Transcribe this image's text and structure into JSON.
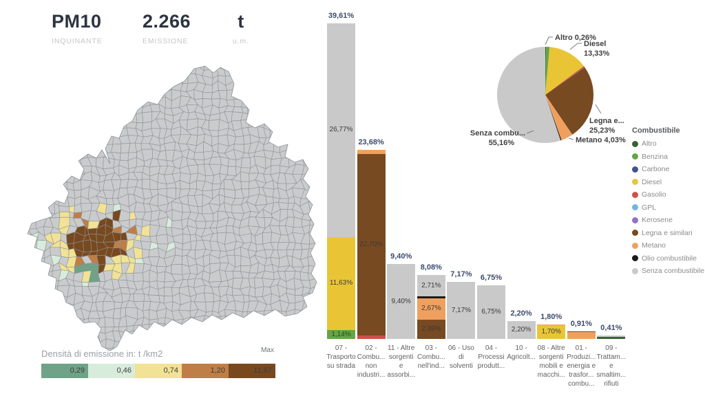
{
  "header": {
    "kpis": [
      {
        "value": "PM10",
        "caption": "INQUINANTE"
      },
      {
        "value": "2.266",
        "caption": "EMISSIONE"
      },
      {
        "value": "t",
        "caption": "u.m."
      }
    ]
  },
  "palette": {
    "fuels": {
      "Altro": "#3a6136",
      "Benzina": "#62a744",
      "Carbone": "#40548c",
      "Diesel": "#e9c536",
      "Gasolio": "#cf5049",
      "GPL": "#70b5e3",
      "Kerosene": "#9271c7",
      "Legna e similari": "#784a21",
      "Metano": "#efa05e",
      "Olio combustibile": "#1a1a1a",
      "Senza combustibile": "#c9c9c9"
    },
    "total_label": "#3b4a6b",
    "map_base": "#c9cbcc",
    "map_stroke": "#8e9396"
  },
  "map": {
    "density_legend": {
      "title": "Densità di emissione in: t /km2",
      "max_label": "Max",
      "stops": [
        {
          "label": "0,29",
          "color": "#6fa287"
        },
        {
          "label": "0,46",
          "color": "#d8ecdc"
        },
        {
          "label": "0,74",
          "color": "#f1e295"
        },
        {
          "label": "1,20",
          "color": "#bf7e45"
        },
        {
          "label": "11,67",
          "color": "#78491f"
        }
      ]
    }
  },
  "chart_data": [
    {
      "type": "bar",
      "stacked": true,
      "unit": "%",
      "title": "",
      "xlabel": "",
      "ylabel": "",
      "ylim": [
        0,
        42
      ],
      "grid": false,
      "categories": [
        "07 - Trasporto su strada",
        "02 - Combu... non industri...",
        "11 - Altre sorgenti e assorbi...",
        "03 - Combu... nell'ind...",
        "06 - Uso di solventi",
        "04 - Processi produtt...",
        "10 - Agricolt...",
        "08 - Altre sorgenti mobili e macchi...",
        "01 - Produzi... energia e trasfor... combu...",
        "09 - Trattam... e smaltim... rifiuti"
      ],
      "category_label_lines": [
        [
          "07 -",
          "Trasporto",
          "su strada"
        ],
        [
          "02 -",
          "Combu...",
          "non",
          "industri..."
        ],
        [
          "11 - Altre",
          "sorgenti",
          "e",
          "assorbi..."
        ],
        [
          "03 -",
          "Combu...",
          "nell'ind..."
        ],
        [
          "06 - Uso",
          "di",
          "solventi"
        ],
        [
          "04 -",
          "Processi",
          "produtt..."
        ],
        [
          "10 -",
          "Agricolt..."
        ],
        [
          "08 - Altre",
          "sorgenti",
          "mobili e",
          "macchi..."
        ],
        [
          "01 -",
          "Produzi...",
          "energia e",
          "trasfor...",
          "combu..."
        ],
        [
          "09 -",
          "Trattam...",
          "e",
          "smaltim...",
          "rifiuti"
        ]
      ],
      "totals": [
        39.61,
        23.68,
        9.4,
        8.08,
        7.17,
        6.75,
        2.2,
        1.8,
        0.91,
        0.41
      ],
      "total_labels": [
        "39,61%",
        "23,68%",
        "9,40%",
        "8,08%",
        "7,17%",
        "6,75%",
        "2,20%",
        "1,80%",
        "0,91%",
        "0,41%"
      ],
      "bars": [
        {
          "segments": [
            {
              "fuel": "Benzina",
              "value": 1.14,
              "label": "1,14%"
            },
            {
              "fuel": "Diesel",
              "value": 11.63,
              "label": "11,63%"
            },
            {
              "fuel": "Senza combustibile",
              "value": 26.77,
              "label": "26,77%"
            }
          ]
        },
        {
          "segments": [
            {
              "fuel": "Gasolio",
              "value": 0.45,
              "label": ""
            },
            {
              "fuel": "Legna e similari",
              "value": 22.7,
              "label": "22,70%"
            },
            {
              "fuel": "Metano",
              "value": 0.53,
              "label": ""
            }
          ]
        },
        {
          "segments": [
            {
              "fuel": "Senza combustibile",
              "value": 9.4,
              "label": "9,40%"
            }
          ]
        },
        {
          "segments": [
            {
              "fuel": "Legna e similari",
              "value": 2.39,
              "label": "2,39%"
            },
            {
              "fuel": "Metano",
              "value": 2.67,
              "label": "2,67%"
            },
            {
              "fuel": "Olio combustibile",
              "value": 0.25,
              "label": ""
            },
            {
              "fuel": "Senza combustibile",
              "value": 2.71,
              "label": "2,71%"
            }
          ]
        },
        {
          "segments": [
            {
              "fuel": "Senza combustibile",
              "value": 7.17,
              "label": "7,17%"
            }
          ]
        },
        {
          "segments": [
            {
              "fuel": "Senza combustibile",
              "value": 6.75,
              "label": "6,75%"
            }
          ]
        },
        {
          "segments": [
            {
              "fuel": "Senza combustibile",
              "value": 2.2,
              "label": "2,20%"
            }
          ]
        },
        {
          "segments": [
            {
              "fuel": "Diesel",
              "value": 1.7,
              "label": "1,70%"
            },
            {
              "fuel": "Metano",
              "value": 0.1,
              "label": ""
            }
          ]
        },
        {
          "segments": [
            {
              "fuel": "Metano",
              "value": 0.83,
              "label": ""
            },
            {
              "fuel": "Legna e similari",
              "value": 0.08,
              "label": ""
            }
          ]
        },
        {
          "segments": [
            {
              "fuel": "Altro",
              "value": 0.25,
              "label": ""
            },
            {
              "fuel": "Senza combustibile",
              "value": 0.16,
              "label": ""
            }
          ]
        }
      ]
    },
    {
      "type": "pie",
      "title": "Combustibile",
      "legend_position": "right",
      "slices": [
        {
          "label": "Altro",
          "value": 0.26
        },
        {
          "label": "Benzina",
          "value": 1.14
        },
        {
          "label": "Carbone",
          "value": 0.05
        },
        {
          "label": "Diesel",
          "value": 13.33
        },
        {
          "label": "Gasolio",
          "value": 0.45
        },
        {
          "label": "GPL",
          "value": 0.02
        },
        {
          "label": "Kerosene",
          "value": 0.02
        },
        {
          "label": "Legna e similari",
          "value": 25.23
        },
        {
          "label": "Metano",
          "value": 4.03
        },
        {
          "label": "Olio combustibile",
          "value": 0.31
        },
        {
          "label": "Senza combustibile",
          "value": 55.16
        }
      ],
      "callouts": [
        {
          "slice": "Altro",
          "lines": [
            "Altro 0,26%"
          ]
        },
        {
          "slice": "Diesel",
          "lines": [
            "Diesel",
            "13,33%"
          ]
        },
        {
          "slice": "Legna e similari",
          "lines": [
            "Legna e...",
            "25,23%"
          ]
        },
        {
          "slice": "Metano",
          "lines": [
            "Metano 4,03%"
          ]
        },
        {
          "slice": "Senza combustibile",
          "lines": [
            "Senza combu...",
            "55,16%"
          ]
        }
      ]
    }
  ],
  "fuel_legend": {
    "title": "Combustibile",
    "items": [
      {
        "label": "Altro"
      },
      {
        "label": "Benzina"
      },
      {
        "label": "Carbone"
      },
      {
        "label": "Diesel"
      },
      {
        "label": "Gasolio"
      },
      {
        "label": "GPL"
      },
      {
        "label": "Kerosene"
      },
      {
        "label": "Legna e similari"
      },
      {
        "label": "Metano"
      },
      {
        "label": "Olio combustibile"
      },
      {
        "label": "Senza combustibile"
      }
    ]
  }
}
